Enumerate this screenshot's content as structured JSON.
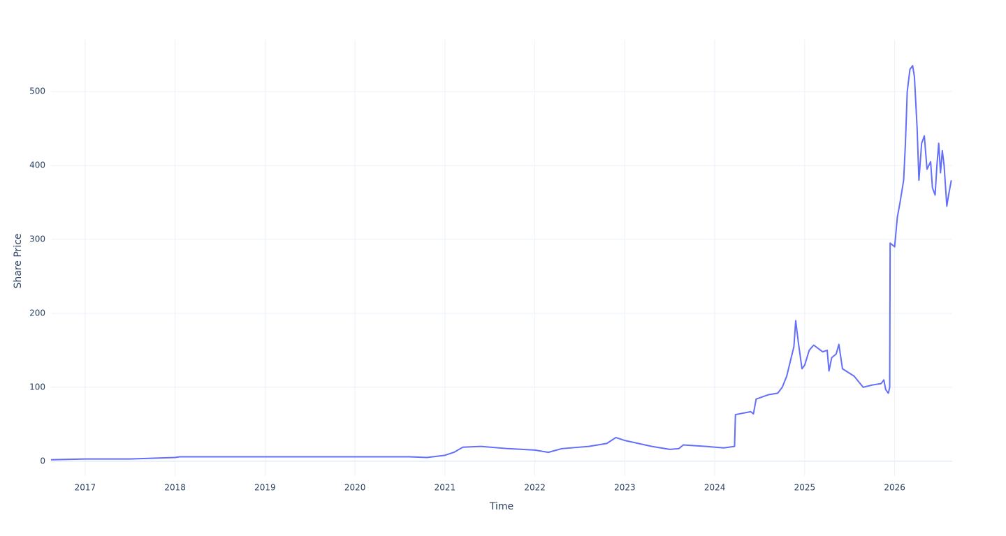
{
  "chart_data": {
    "type": "line",
    "xlabel": "Time",
    "ylabel": "Share Price",
    "color": "#636efa",
    "grid": true,
    "x": [
      2016.62,
      2017.0,
      2017.5,
      2018.0,
      2018.05,
      2019.0,
      2020.0,
      2020.6,
      2020.8,
      2021.0,
      2021.1,
      2021.2,
      2021.4,
      2021.7,
      2022.0,
      2022.15,
      2022.3,
      2022.6,
      2022.8,
      2022.9,
      2023.0,
      2023.3,
      2023.5,
      2023.6,
      2023.65,
      2023.9,
      2024.1,
      2024.22,
      2024.23,
      2024.4,
      2024.43,
      2024.46,
      2024.6,
      2024.7,
      2024.75,
      2024.8,
      2024.85,
      2024.88,
      2024.9,
      2024.93,
      2024.97,
      2025.0,
      2025.05,
      2025.1,
      2025.2,
      2025.25,
      2025.27,
      2025.3,
      2025.35,
      2025.38,
      2025.42,
      2025.55,
      2025.65,
      2025.75,
      2025.85,
      2025.88,
      2025.9,
      2025.93,
      2025.945,
      2025.95,
      2026.0,
      2026.03,
      2026.06,
      2026.1,
      2026.12,
      2026.14,
      2026.17,
      2026.2,
      2026.22,
      2026.25,
      2026.27,
      2026.3,
      2026.33,
      2026.36,
      2026.4,
      2026.42,
      2026.45,
      2026.47,
      2026.49,
      2026.51,
      2026.53,
      2026.55,
      2026.58,
      2026.6,
      2026.63
    ],
    "values": [
      2,
      3,
      3,
      5,
      6,
      6,
      6,
      6,
      5,
      8,
      12,
      19,
      20,
      17,
      15,
      12,
      17,
      20,
      24,
      32,
      28,
      20,
      16,
      17,
      22,
      20,
      18,
      20,
      63,
      67,
      64,
      84,
      90,
      92,
      100,
      115,
      140,
      155,
      190,
      160,
      125,
      130,
      150,
      157,
      148,
      150,
      122,
      140,
      145,
      158,
      125,
      115,
      100,
      103,
      105,
      110,
      97,
      92,
      100,
      295,
      290,
      330,
      350,
      380,
      430,
      500,
      530,
      535,
      520,
      450,
      380,
      430,
      440,
      395,
      405,
      370,
      360,
      400,
      430,
      390,
      420,
      400,
      345,
      360,
      380
    ],
    "xlim": [
      2016.62,
      2026.64
    ],
    "xticks": [
      2017,
      2018,
      2019,
      2020,
      2021,
      2022,
      2023,
      2024,
      2025,
      2026
    ],
    "ylim": [
      -20,
      570
    ],
    "yticks": [
      0,
      100,
      200,
      300,
      400,
      500
    ]
  }
}
